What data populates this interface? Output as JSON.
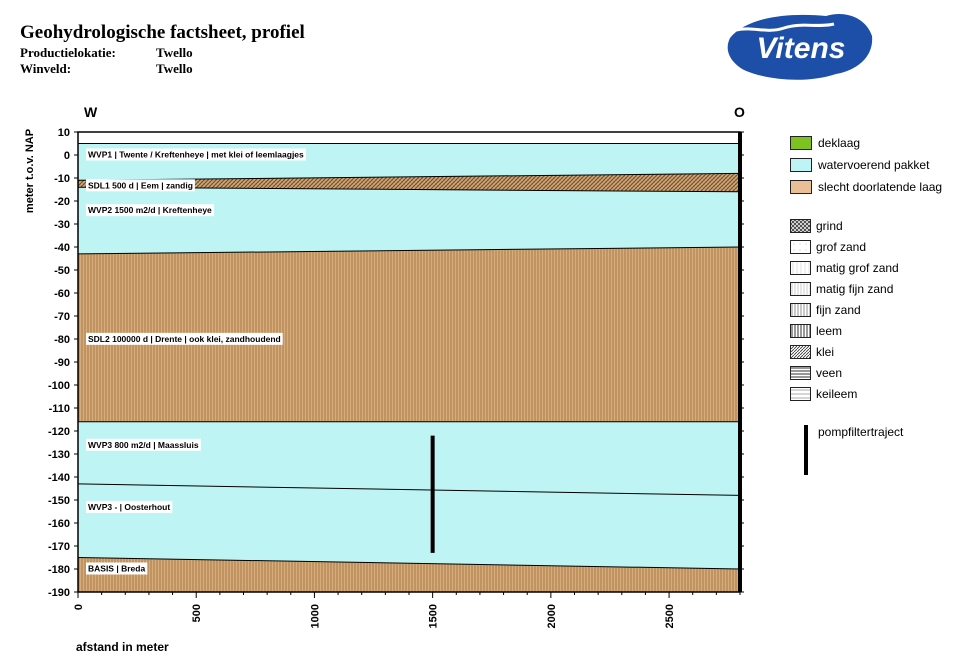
{
  "header": {
    "title": "Geohydrologische factsheet, profiel",
    "rows": [
      {
        "label": "Productielokatie:",
        "value": "Twello"
      },
      {
        "label": "Winveld:",
        "value": "Twello"
      }
    ],
    "logo_text": "Vitens"
  },
  "directions": {
    "west": "W",
    "east": "O"
  },
  "chart_data": {
    "type": "area",
    "xlabel": "afstand in meter",
    "ylabel": "meter t.o.v. NAP",
    "xlim": [
      0,
      2800
    ],
    "ylim": [
      -190,
      10
    ],
    "x_ticks": [
      0,
      500,
      1000,
      1500,
      2000,
      2500
    ],
    "y_ticks": [
      10,
      0,
      -10,
      -20,
      -30,
      -40,
      -50,
      -60,
      -70,
      -80,
      -90,
      -100,
      -110,
      -120,
      -130,
      -140,
      -150,
      -160,
      -170,
      -180,
      -190
    ],
    "layers": [
      {
        "label": "WVP1  | Twente / Kreftenheye | met klei of leemlaagjes",
        "type": "watervoerend pakket",
        "top": [
          5,
          5
        ],
        "bottom": [
          -11,
          -8
        ]
      },
      {
        "label": "SDL1 500 d | Eem | zandig",
        "type": "slecht doorlatende laag",
        "top": [
          -11,
          -8
        ],
        "bottom": [
          -14,
          -16
        ]
      },
      {
        "label": "WVP2 1500 m2/d | Kreftenheye",
        "type": "watervoerend pakket",
        "top": [
          -14,
          -16
        ],
        "bottom": [
          -43,
          -40
        ]
      },
      {
        "label": "SDL2 100000 d | Drente | ook klei, zandhoudend",
        "type": "slecht doorlatende laag",
        "top": [
          -43,
          -40
        ],
        "bottom": [
          -116,
          -116
        ]
      },
      {
        "label": "WVP3 800 m2/d | Maassluis",
        "type": "watervoerend pakket",
        "top": [
          -116,
          -116
        ],
        "bottom": [
          -143,
          -148
        ]
      },
      {
        "label": "WVP3 -  | Oosterhout",
        "type": "watervoerend pakket",
        "top": [
          -143,
          -148
        ],
        "bottom": [
          -175,
          -180
        ]
      },
      {
        "label": "BASIS  | Breda",
        "type": "slecht doorlatende laag",
        "top": [
          -175,
          -180
        ],
        "bottom": [
          -190,
          -190
        ]
      }
    ],
    "pompfiltertraject": {
      "x": 1500,
      "y_top": -122,
      "y_bottom": -173
    }
  },
  "legend": {
    "units": [
      {
        "label": "deklaag",
        "color": "#7dc21e"
      },
      {
        "label": "watervoerend pakket",
        "color": "#bff4f4"
      },
      {
        "label": "slecht doorlatende laag",
        "color": "#eabf95"
      }
    ],
    "lithology": [
      {
        "label": "grind",
        "pattern": "grind"
      },
      {
        "label": "grof zand",
        "pattern": "grofzand"
      },
      {
        "label": "matig grof zand",
        "pattern": "matiggrof"
      },
      {
        "label": "matig fijn zand",
        "pattern": "matigfijn"
      },
      {
        "label": "fijn zand",
        "pattern": "fijnzand"
      },
      {
        "label": "leem",
        "pattern": "leem"
      },
      {
        "label": "klei",
        "pattern": "klei"
      },
      {
        "label": "veen",
        "pattern": "veen"
      },
      {
        "label": "keileem",
        "pattern": "keileem"
      }
    ],
    "pomp_label": "pompfiltertraject"
  },
  "colors": {
    "water": "#bff4f4",
    "clay": "#d8ac7a",
    "cover": "#7dc21e"
  }
}
